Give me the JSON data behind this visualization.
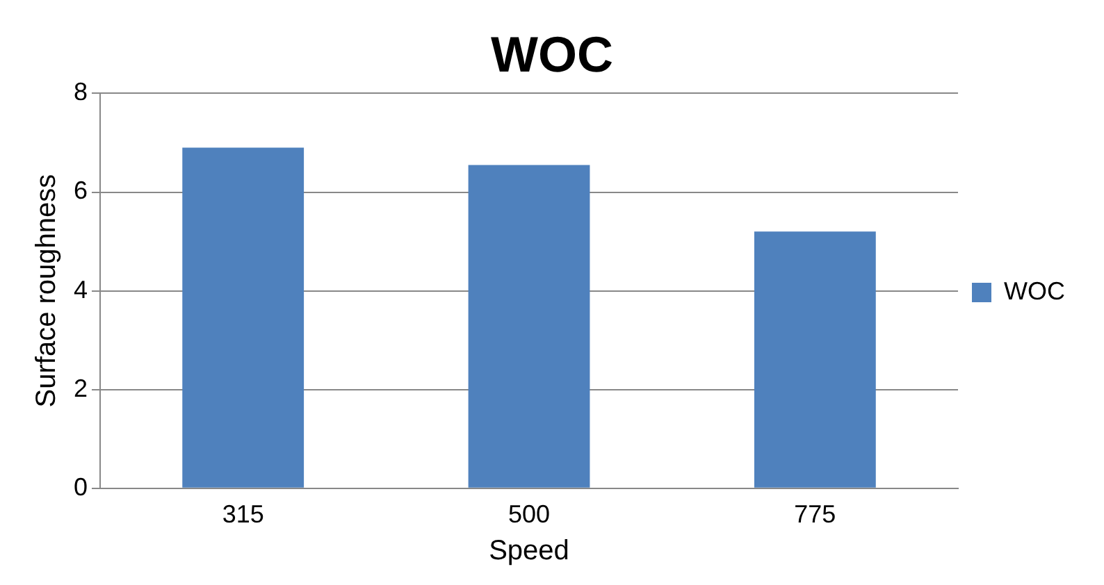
{
  "chart_data": {
    "type": "bar",
    "title": "WOC",
    "xlabel": "Speed",
    "ylabel": "Surface roughness",
    "categories": [
      "315",
      "500",
      "775"
    ],
    "series": [
      {
        "name": "WOC",
        "color": "#4f81bd",
        "values": [
          6.9,
          6.55,
          5.2
        ]
      }
    ],
    "ylim": [
      0,
      8
    ],
    "yticks": [
      0,
      2,
      4,
      6,
      8
    ],
    "grid": "y",
    "legend": "right"
  }
}
